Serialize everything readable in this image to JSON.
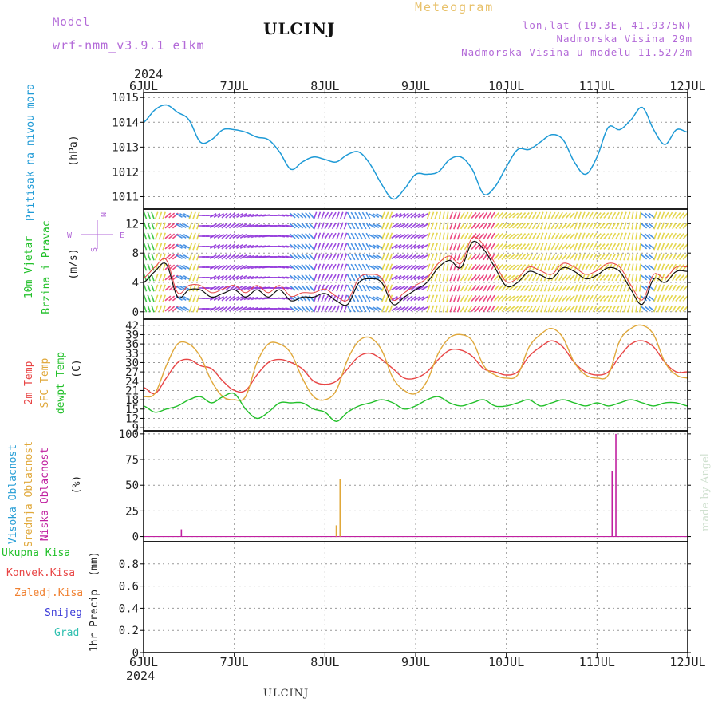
{
  "header": {
    "title": "ULCINJ",
    "meteogram_word": "Meteogram",
    "model_label": "Model",
    "model_name": "wrf-nmm_v3.9.1  e1km",
    "info_lines": [
      "lon,lat (19.3E, 41.9375N)",
      "Nadmorska Visina 29m",
      "Nadmorska Visina u modelu 11.5272m"
    ],
    "year": "2024",
    "credit": "made by Angel",
    "footer_station": "ULCINJ"
  },
  "colors": {
    "pressure": "#1e9ad6",
    "wind_label": "#22c02a",
    "temp2m": "#e84545",
    "sfc_temp": "#e0a83a",
    "dewpt": "#22c02a",
    "high_cloud": "#2a9fd6",
    "mid_cloud": "#e0a83a",
    "low_cloud": "#c020a0",
    "precip_total": "#22c02a",
    "precip_conv": "#e84545",
    "precip_frozen": "#f08030",
    "snow": "#3a3ad8",
    "hail": "#30c0b0",
    "compass": "#b36ad8"
  },
  "chart_data": [
    {
      "type": "line",
      "name": "pressure",
      "ylabel": "Pritisak na nivou mora",
      "unit": "(hPa)",
      "ylim": [
        1010.5,
        1015.2
      ],
      "yticks": [
        1011,
        1012,
        1013,
        1014,
        1015
      ],
      "xticks": [
        "6JUL",
        "7JUL",
        "8JUL",
        "9JUL",
        "10JUL",
        "11JUL",
        "12JUL"
      ],
      "x_hours": [
        0,
        3,
        6,
        9,
        12,
        15,
        18,
        21,
        24,
        27,
        30,
        33,
        36,
        39,
        42,
        45,
        48,
        51,
        54,
        57,
        60,
        63,
        66,
        69,
        72,
        75,
        78,
        81,
        84,
        87,
        90,
        93,
        96,
        99,
        102,
        105,
        108,
        111,
        114,
        117,
        120,
        123,
        126,
        129,
        132,
        135,
        138,
        141,
        144
      ],
      "values": [
        1014.0,
        1014.5,
        1014.7,
        1014.4,
        1014.1,
        1013.2,
        1013.3,
        1013.7,
        1013.7,
        1013.6,
        1013.4,
        1013.3,
        1012.8,
        1012.1,
        1012.4,
        1012.6,
        1012.5,
        1012.4,
        1012.7,
        1012.8,
        1012.3,
        1011.5,
        1010.9,
        1011.3,
        1011.9,
        1011.9,
        1012.0,
        1012.5,
        1012.6,
        1012.1,
        1011.1,
        1011.4,
        1012.2,
        1012.9,
        1012.9,
        1013.2,
        1013.5,
        1013.3,
        1012.4,
        1011.9,
        1012.6,
        1013.8,
        1013.7,
        1014.1,
        1014.6,
        1013.7,
        1013.1,
        1013.7,
        1013.6
      ]
    },
    {
      "type": "line",
      "name": "wind",
      "ylabel": "10m Vjetar",
      "ylabel2": "Brzina i Pravac",
      "unit": "(m/s)",
      "compass": {
        "n": "N",
        "s": "S",
        "e": "E",
        "w": "W"
      },
      "ylim": [
        -1,
        14
      ],
      "yticks": [
        0,
        4,
        8,
        12
      ],
      "x_hours": [
        0,
        3,
        6,
        9,
        12,
        15,
        18,
        21,
        24,
        27,
        30,
        33,
        36,
        39,
        42,
        45,
        48,
        51,
        54,
        57,
        60,
        63,
        66,
        69,
        72,
        75,
        78,
        81,
        84,
        87,
        90,
        93,
        96,
        99,
        102,
        105,
        108,
        111,
        114,
        117,
        120,
        123,
        126,
        129,
        132,
        135,
        138,
        141,
        144
      ],
      "speed": [
        4.0,
        5.5,
        6.5,
        2.0,
        3.0,
        3.0,
        2.0,
        2.5,
        3.0,
        2.0,
        3.0,
        2.0,
        3.0,
        1.5,
        2.0,
        2.0,
        2.5,
        1.5,
        1.0,
        4.0,
        4.5,
        4.0,
        1.0,
        2.0,
        3.0,
        4.0,
        6.0,
        7.0,
        6.0,
        9.5,
        8.5,
        6.0,
        3.5,
        4.0,
        5.5,
        5.0,
        4.5,
        6.0,
        5.5,
        4.5,
        5.0,
        6.0,
        5.5,
        3.0,
        1.0,
        4.5,
        4.0,
        5.5,
        5.5
      ],
      "direction_deg": [
        160,
        200,
        230,
        300,
        200,
        90,
        60,
        50,
        60,
        70,
        80,
        90,
        100,
        310,
        320,
        20,
        30,
        20,
        330,
        330,
        300,
        200,
        60,
        50,
        60,
        200,
        190,
        200,
        210,
        220,
        210,
        220,
        230,
        220,
        210,
        200,
        210,
        220,
        200,
        210,
        220,
        210,
        200,
        190,
        310,
        200,
        210,
        220,
        210
      ]
    },
    {
      "type": "line",
      "name": "temperature",
      "ylabel_lines": [
        "2m Temp",
        "SFC Temp",
        "dewpt Temp"
      ],
      "unit": "(C)",
      "ylim": [
        8,
        44
      ],
      "yticks": [
        9,
        12,
        15,
        18,
        21,
        24,
        27,
        30,
        33,
        36,
        39,
        42
      ],
      "x_hours": [
        0,
        3,
        6,
        9,
        12,
        15,
        18,
        21,
        24,
        27,
        30,
        33,
        36,
        39,
        42,
        45,
        48,
        51,
        54,
        57,
        60,
        63,
        66,
        69,
        72,
        75,
        78,
        81,
        84,
        87,
        90,
        93,
        96,
        99,
        102,
        105,
        108,
        111,
        114,
        117,
        120,
        123,
        126,
        129,
        132,
        135,
        138,
        141,
        144
      ],
      "series": [
        {
          "name": "2m Temp",
          "values": [
            22,
            20,
            25,
            30,
            31,
            29,
            28,
            24,
            21,
            21,
            26,
            30,
            31,
            30,
            28,
            24,
            23,
            24,
            28,
            32,
            33,
            31,
            28,
            25,
            25,
            27,
            31,
            34,
            34,
            32,
            28,
            27,
            26,
            27,
            32,
            35,
            37,
            35,
            30,
            27,
            26,
            27,
            32,
            36,
            37,
            35,
            30,
            27,
            27
          ]
        },
        {
          "name": "SFC Temp",
          "values": [
            19,
            20,
            29,
            36,
            36,
            32,
            24,
            19,
            18,
            19,
            30,
            36,
            36,
            33,
            25,
            19,
            18,
            21,
            31,
            37,
            38,
            34,
            25,
            21,
            20,
            24,
            33,
            38,
            39,
            37,
            29,
            26,
            25,
            26,
            35,
            39,
            41,
            38,
            30,
            26,
            25,
            26,
            37,
            41,
            42,
            39,
            30,
            26,
            25
          ]
        },
        {
          "name": "dewpt Temp",
          "values": [
            16,
            14,
            15,
            16,
            18,
            19,
            17,
            19,
            20,
            15,
            12,
            14,
            17,
            17,
            17,
            15,
            14,
            11,
            14,
            16,
            17,
            18,
            17,
            15,
            16,
            18,
            19,
            17,
            16,
            17,
            18,
            16,
            16,
            17,
            18,
            16,
            17,
            18,
            17,
            16,
            17,
            16,
            17,
            18,
            17,
            16,
            17,
            17,
            16
          ]
        }
      ]
    },
    {
      "type": "bar",
      "name": "cloud",
      "ylabel_lines": [
        "Visoka Oblacnost",
        "Srednja Oblacnost",
        "Niska Oblacnost"
      ],
      "unit": "(%)",
      "ylim": [
        -5,
        103
      ],
      "yticks": [
        0,
        25,
        50,
        75,
        100
      ],
      "series": [
        {
          "name": "Visoka Oblacnost",
          "points": []
        },
        {
          "name": "Srednja Oblacnost",
          "points": [
            [
              51,
              11
            ],
            [
              52,
              56
            ]
          ]
        },
        {
          "name": "Niska Oblacnost",
          "points": [
            [
              10,
              7
            ],
            [
              124,
              64
            ],
            [
              125,
              100
            ]
          ]
        }
      ]
    },
    {
      "type": "bar",
      "name": "precip",
      "legend": [
        "Ukupna Kisa",
        "Konvek.Kisa",
        "Zaledj.Kisa",
        "Snijeg",
        "Grad"
      ],
      "ylabel": "1hr Precip",
      "unit": "(mm)",
      "ylim": [
        0,
        1.0
      ],
      "yticks": [
        0,
        0.2,
        0.4,
        0.6,
        0.8
      ],
      "ytick_labels": [
        "0",
        "0.2",
        "0.4",
        "0.6",
        "0.8"
      ],
      "values": []
    }
  ]
}
